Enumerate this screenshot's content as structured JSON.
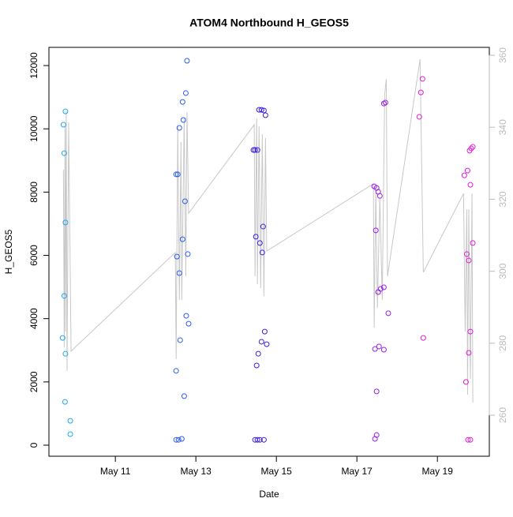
{
  "chart_data": {
    "type": "scatter",
    "title": "ATOM4 Northbound H_GEOS5",
    "x_label": "Date",
    "y_label": "H_GEOS5",
    "xlim": [
      9.35,
      20.29
    ],
    "ylim": [
      -349,
      12575
    ],
    "y2lim": [
      248.6,
      362.2
    ],
    "xticks": [
      {
        "value": 11,
        "label": "May 11"
      },
      {
        "value": 13,
        "label": "May 13"
      },
      {
        "value": 15,
        "label": "May 15"
      },
      {
        "value": 17,
        "label": "May 17"
      },
      {
        "value": 19,
        "label": "May 19"
      }
    ],
    "yticks": [
      0,
      2000,
      4000,
      6000,
      8000,
      10000,
      12000
    ],
    "y2ticks": [
      260,
      280,
      300,
      320,
      340,
      360
    ],
    "series": [
      {
        "type": "scatter",
        "color": "#1ea9f0",
        "x": [
          9.71,
          9.73,
          9.76,
          9.76,
          9.73,
          9.69,
          9.76,
          9.75,
          9.88,
          9.88
        ],
        "values": [
          10130,
          9230,
          10550,
          7040,
          4720,
          3390,
          2890,
          1370,
          770,
          350
        ]
      },
      {
        "type": "scatter",
        "color": "#2a5cf0",
        "x": [
          12.51,
          12.55,
          12.69,
          12.59,
          12.67,
          12.75,
          12.78,
          12.73,
          12.67,
          12.53,
          12.8,
          12.59,
          12.76,
          12.82,
          12.61,
          12.51,
          12.71,
          12.51,
          12.57,
          12.65
        ],
        "values": [
          8560,
          8560,
          10280,
          10030,
          10850,
          11130,
          12150,
          7710,
          6510,
          5960,
          6040,
          5440,
          4090,
          3840,
          3320,
          2350,
          1550,
          170,
          170,
          200
        ]
      },
      {
        "type": "scatter",
        "color": "#3a1ee0",
        "x": [
          14.47,
          14.53,
          14.43,
          14.57,
          14.63,
          14.69,
          14.73,
          14.49,
          14.67,
          14.59,
          14.65,
          14.71,
          14.63,
          14.76,
          14.55,
          14.51,
          14.47,
          14.53,
          14.59,
          14.69
        ],
        "values": [
          9330,
          9330,
          9330,
          10600,
          10600,
          10580,
          10430,
          6590,
          6910,
          6390,
          6090,
          3590,
          3270,
          3190,
          2890,
          2520,
          170,
          170,
          170,
          170
        ]
      },
      {
        "type": "scatter",
        "color": "#9a1ee8",
        "x": [
          17.43,
          17.49,
          17.53,
          17.57,
          17.47,
          17.53,
          17.59,
          17.67,
          17.71,
          17.67,
          17.78,
          17.45,
          17.55,
          17.67,
          17.49,
          17.49,
          17.45
        ],
        "values": [
          8180,
          8130,
          8010,
          7880,
          6790,
          4840,
          4940,
          4990,
          10830,
          10800,
          4170,
          3040,
          3120,
          3020,
          1700,
          320,
          200
        ]
      },
      {
        "type": "scatter",
        "color": "#e01ed8",
        "x": [
          18.63,
          18.59,
          18.55,
          18.65,
          19.67,
          19.75,
          19.8,
          19.84,
          19.88,
          19.82,
          19.88,
          19.73,
          19.78,
          19.82,
          19.78,
          19.71,
          19.76,
          19.82
        ],
        "values": [
          11580,
          11150,
          10380,
          3390,
          8530,
          8680,
          9310,
          9380,
          9430,
          8230,
          6390,
          6040,
          5840,
          3590,
          2920,
          2000,
          170,
          170
        ]
      },
      {
        "type": "line",
        "axis": "y2",
        "color": "#c8c8c8",
        "x": [
          9.71,
          9.73,
          9.75,
          9.76,
          9.78,
          9.8,
          9.84,
          9.9,
          12.49,
          12.51,
          12.55,
          12.59,
          12.63,
          12.65,
          12.71,
          12.75,
          12.78,
          12.82,
          14.45,
          14.47,
          14.51,
          14.53,
          14.57,
          14.61,
          14.65,
          14.69,
          14.73,
          14.76,
          17.41,
          17.43,
          17.47,
          17.51,
          17.57,
          17.63,
          17.69,
          17.73,
          17.76,
          18.57,
          18.65,
          19.65,
          19.69,
          19.73,
          19.75,
          19.78,
          19.82,
          19.86,
          19.88
        ],
        "values": [
          328.2,
          278.9,
          340.3,
          283.2,
          344.6,
          272.3,
          341.4,
          277.8,
          305.2,
          275.6,
          340.3,
          292.0,
          335.9,
          292.0,
          342.5,
          298.6,
          344.2,
          316.1,
          340.7,
          298.6,
          342.5,
          296.4,
          340.3,
          295.3,
          338.1,
          293.1,
          337.0,
          305.6,
          324.3,
          284.3,
          322.7,
          289.8,
          320.5,
          292.0,
          349.0,
          353.4,
          298.6,
          358.9,
          299.7,
          321.6,
          283.2,
          317.2,
          265.7,
          317.2,
          270.1,
          321.6,
          263.5
        ]
      }
    ]
  }
}
